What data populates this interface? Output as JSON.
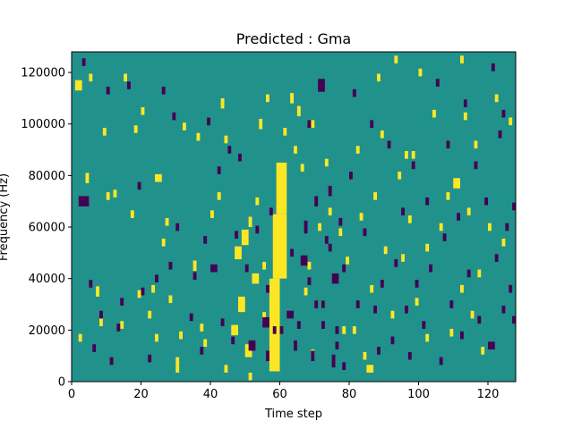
{
  "chart_data": {
    "type": "heatmap",
    "title": "Predicted : Gma",
    "xlabel": "Time step",
    "ylabel": "Frequency (Hz)",
    "xlim": [
      0,
      128
    ],
    "ylim": [
      0,
      128000
    ],
    "xticks": [
      0,
      20,
      40,
      60,
      80,
      100,
      120
    ],
    "yticks": [
      0,
      20000,
      40000,
      60000,
      80000,
      100000,
      120000
    ],
    "grid": false,
    "legend": "none",
    "n_time_steps": 128,
    "n_freq_bins": 128,
    "colormap": "viridis",
    "colors": {
      "background": "#21918c",
      "high": "#fde725",
      "low": "#440154"
    },
    "dense_band": {
      "level": "high",
      "rows": [
        {
          "t": [
            57,
            60
          ],
          "f": [
            4000,
            40000
          ]
        },
        {
          "t": [
            58,
            62
          ],
          "f": [
            40000,
            65000
          ]
        },
        {
          "t": [
            59,
            62
          ],
          "f": [
            65000,
            85000
          ]
        }
      ]
    },
    "blobs": {
      "high": [
        [
          1,
          115000,
          2,
          4000
        ],
        [
          2,
          17000,
          1,
          3000
        ],
        [
          3,
          70000,
          1,
          4000
        ],
        [
          4,
          79000,
          1,
          4000
        ],
        [
          5,
          118000,
          1,
          3000
        ],
        [
          7,
          35000,
          1,
          4000
        ],
        [
          8,
          23000,
          1,
          3000
        ],
        [
          9,
          97000,
          1,
          3000
        ],
        [
          10,
          72000,
          1,
          3000
        ],
        [
          12,
          73000,
          1,
          3000
        ],
        [
          14,
          22000,
          1,
          3000
        ],
        [
          15,
          118000,
          1,
          3000
        ],
        [
          17,
          65000,
          1,
          3000
        ],
        [
          18,
          98000,
          1,
          3000
        ],
        [
          19,
          34000,
          1,
          3000
        ],
        [
          20,
          105000,
          1,
          3000
        ],
        [
          22,
          26000,
          1,
          3000
        ],
        [
          23,
          36000,
          1,
          3000
        ],
        [
          24,
          79000,
          2,
          3000
        ],
        [
          24,
          17000,
          1,
          3000
        ],
        [
          26,
          54000,
          1,
          3000
        ],
        [
          27,
          62000,
          1,
          3000
        ],
        [
          28,
          32000,
          1,
          3000
        ],
        [
          30,
          8000,
          1,
          3000
        ],
        [
          31,
          18000,
          1,
          3000
        ],
        [
          32,
          99000,
          1,
          3000
        ],
        [
          35,
          45000,
          1,
          4000
        ],
        [
          36,
          95000,
          1,
          3000
        ],
        [
          37,
          21000,
          1,
          3000
        ],
        [
          38,
          15000,
          1,
          3000
        ],
        [
          40,
          65000,
          1,
          3000
        ],
        [
          43,
          108000,
          1,
          4000
        ],
        [
          44,
          5000,
          1,
          3000
        ],
        [
          46,
          20000,
          2,
          4000
        ],
        [
          47,
          50000,
          2,
          5000
        ],
        [
          48,
          30000,
          2,
          6000
        ],
        [
          49,
          56000,
          2,
          6000
        ],
        [
          50,
          12000,
          2,
          5000
        ],
        [
          51,
          62000,
          1,
          4000
        ],
        [
          52,
          40000,
          2,
          4000
        ],
        [
          53,
          70000,
          1,
          3000
        ],
        [
          54,
          100000,
          1,
          4000
        ],
        [
          55,
          25000,
          1,
          4000
        ],
        [
          56,
          110000,
          1,
          3000
        ],
        [
          63,
          110000,
          1,
          4000
        ],
        [
          64,
          90000,
          1,
          3000
        ],
        [
          65,
          105000,
          1,
          4000
        ],
        [
          66,
          83000,
          1,
          3000
        ],
        [
          68,
          45000,
          1,
          3000
        ],
        [
          69,
          100000,
          1,
          3000
        ],
        [
          71,
          60000,
          1,
          3000
        ],
        [
          72,
          30000,
          1,
          3000
        ],
        [
          73,
          85000,
          1,
          3000
        ],
        [
          74,
          66000,
          1,
          3000
        ],
        [
          75,
          40000,
          1,
          3000
        ],
        [
          77,
          58000,
          1,
          3000
        ],
        [
          78,
          20000,
          1,
          3000
        ],
        [
          79,
          47000,
          1,
          3000
        ],
        [
          81,
          20000,
          1,
          3000
        ],
        [
          82,
          90000,
          1,
          3000
        ],
        [
          83,
          64000,
          1,
          3000
        ],
        [
          84,
          10000,
          1,
          3000
        ],
        [
          85,
          5000,
          2,
          3000
        ],
        [
          86,
          36000,
          1,
          3000
        ],
        [
          87,
          72000,
          1,
          3000
        ],
        [
          89,
          96000,
          1,
          3000
        ],
        [
          90,
          51000,
          1,
          3000
        ],
        [
          92,
          26000,
          1,
          3000
        ],
        [
          94,
          80000,
          1,
          3000
        ],
        [
          95,
          48000,
          1,
          3000
        ],
        [
          96,
          88000,
          1,
          3000
        ],
        [
          97,
          63000,
          1,
          3000
        ],
        [
          98,
          88000,
          1,
          3000
        ],
        [
          99,
          31000,
          1,
          3000
        ],
        [
          102,
          52000,
          1,
          3000
        ],
        [
          104,
          104000,
          1,
          3000
        ],
        [
          106,
          60000,
          1,
          3000
        ],
        [
          108,
          72000,
          1,
          3000
        ],
        [
          109,
          19000,
          1,
          3000
        ],
        [
          110,
          77000,
          2,
          4000
        ],
        [
          112,
          36000,
          1,
          3000
        ],
        [
          113,
          103000,
          1,
          3000
        ],
        [
          114,
          66000,
          1,
          3000
        ],
        [
          115,
          26000,
          1,
          3000
        ],
        [
          116,
          92000,
          1,
          3000
        ],
        [
          117,
          42000,
          1,
          3000
        ],
        [
          118,
          12000,
          1,
          3000
        ],
        [
          120,
          60000,
          1,
          3000
        ],
        [
          122,
          110000,
          1,
          3000
        ],
        [
          124,
          54000,
          1,
          3000
        ],
        [
          126,
          101000,
          1,
          3000
        ],
        [
          88,
          118000,
          1,
          3000
        ],
        [
          93,
          125000,
          1,
          3000
        ],
        [
          112,
          125000,
          1,
          3000
        ],
        [
          67,
          35000,
          1,
          3000
        ],
        [
          30,
          5000,
          1,
          3000
        ],
        [
          42,
          72000,
          1,
          3000
        ],
        [
          44,
          94000,
          1,
          3000
        ],
        [
          69,
          11000,
          1,
          3000
        ],
        [
          102,
          17000,
          1,
          3000
        ],
        [
          61,
          97000,
          1,
          3000
        ],
        [
          55,
          45000,
          1,
          3000
        ],
        [
          51,
          2000,
          1,
          3000
        ],
        [
          100,
          120000,
          1,
          3000
        ]
      ],
      "low": [
        [
          2,
          70000,
          3,
          4000
        ],
        [
          3,
          124000,
          1,
          3000
        ],
        [
          5,
          38000,
          1,
          3000
        ],
        [
          6,
          13000,
          1,
          3000
        ],
        [
          8,
          26000,
          1,
          3000
        ],
        [
          10,
          113000,
          1,
          3000
        ],
        [
          11,
          8000,
          1,
          3000
        ],
        [
          13,
          21000,
          1,
          3000
        ],
        [
          14,
          31000,
          1,
          3000
        ],
        [
          16,
          115000,
          1,
          3000
        ],
        [
          19,
          76000,
          1,
          3000
        ],
        [
          20,
          35000,
          1,
          3000
        ],
        [
          22,
          9000,
          1,
          3000
        ],
        [
          24,
          40000,
          1,
          3000
        ],
        [
          26,
          113000,
          1,
          3000
        ],
        [
          28,
          45000,
          1,
          3000
        ],
        [
          29,
          103000,
          1,
          3000
        ],
        [
          30,
          60000,
          1,
          3000
        ],
        [
          34,
          25000,
          1,
          3000
        ],
        [
          35,
          41000,
          1,
          3000
        ],
        [
          37,
          12000,
          1,
          3000
        ],
        [
          38,
          55000,
          1,
          3000
        ],
        [
          39,
          101000,
          1,
          3000
        ],
        [
          40,
          44000,
          2,
          3000
        ],
        [
          42,
          82000,
          1,
          3000
        ],
        [
          43,
          23000,
          1,
          3000
        ],
        [
          45,
          90000,
          1,
          3000
        ],
        [
          46,
          16000,
          1,
          3000
        ],
        [
          47,
          57000,
          1,
          3000
        ],
        [
          48,
          87000,
          1,
          3000
        ],
        [
          50,
          44000,
          1,
          3000
        ],
        [
          51,
          14000,
          2,
          4000
        ],
        [
          53,
          59000,
          1,
          3000
        ],
        [
          55,
          23000,
          2,
          4000
        ],
        [
          56,
          10000,
          1,
          4000
        ],
        [
          56,
          36000,
          1,
          3000
        ],
        [
          57,
          66000,
          1,
          3000
        ],
        [
          64,
          14000,
          1,
          4000
        ],
        [
          65,
          22000,
          1,
          3000
        ],
        [
          66,
          47000,
          2,
          4000
        ],
        [
          67,
          60000,
          1,
          5000
        ],
        [
          68,
          39000,
          1,
          3000
        ],
        [
          68,
          100000,
          1,
          3000
        ],
        [
          69,
          10000,
          1,
          4000
        ],
        [
          70,
          70000,
          1,
          4000
        ],
        [
          71,
          115000,
          2,
          5000
        ],
        [
          72,
          30000,
          1,
          3000
        ],
        [
          73,
          55000,
          1,
          3000
        ],
        [
          74,
          74000,
          1,
          4000
        ],
        [
          75,
          8000,
          1,
          5000
        ],
        [
          75,
          40000,
          2,
          4000
        ],
        [
          76,
          20000,
          1,
          3000
        ],
        [
          77,
          62000,
          1,
          3000
        ],
        [
          78,
          44000,
          1,
          3000
        ],
        [
          80,
          80000,
          1,
          3000
        ],
        [
          81,
          112000,
          1,
          3000
        ],
        [
          82,
          30000,
          1,
          3000
        ],
        [
          84,
          58000,
          1,
          3000
        ],
        [
          86,
          100000,
          1,
          3000
        ],
        [
          87,
          28000,
          1,
          3000
        ],
        [
          88,
          12000,
          1,
          3000
        ],
        [
          89,
          38000,
          1,
          3000
        ],
        [
          91,
          92000,
          1,
          3000
        ],
        [
          92,
          16000,
          1,
          3000
        ],
        [
          93,
          46000,
          1,
          3000
        ],
        [
          95,
          66000,
          1,
          3000
        ],
        [
          96,
          28000,
          1,
          3000
        ],
        [
          97,
          10000,
          1,
          3000
        ],
        [
          98,
          84000,
          1,
          3000
        ],
        [
          99,
          38000,
          1,
          3000
        ],
        [
          101,
          22000,
          1,
          3000
        ],
        [
          102,
          70000,
          1,
          3000
        ],
        [
          103,
          44000,
          1,
          3000
        ],
        [
          105,
          116000,
          1,
          3000
        ],
        [
          106,
          8000,
          1,
          3000
        ],
        [
          107,
          56000,
          1,
          3000
        ],
        [
          108,
          92000,
          1,
          3000
        ],
        [
          109,
          30000,
          1,
          3000
        ],
        [
          111,
          64000,
          1,
          3000
        ],
        [
          112,
          18000,
          1,
          3000
        ],
        [
          113,
          108000,
          1,
          3000
        ],
        [
          114,
          42000,
          1,
          3000
        ],
        [
          116,
          84000,
          1,
          3000
        ],
        [
          117,
          24000,
          1,
          3000
        ],
        [
          119,
          70000,
          1,
          3000
        ],
        [
          120,
          14000,
          1,
          3000
        ],
        [
          122,
          48000,
          1,
          3000
        ],
        [
          123,
          96000,
          1,
          3000
        ],
        [
          124,
          28000,
          1,
          3000
        ],
        [
          125,
          60000,
          1,
          3000
        ],
        [
          126,
          36000,
          1,
          3000
        ],
        [
          127,
          68000,
          1,
          3000
        ],
        [
          127,
          24000,
          1,
          3000
        ],
        [
          124,
          104000,
          1,
          3000
        ],
        [
          121,
          122000,
          1,
          3000
        ],
        [
          70,
          30000,
          1,
          3000
        ],
        [
          72,
          22000,
          1,
          3000
        ],
        [
          74,
          52000,
          1,
          3000
        ],
        [
          76,
          14000,
          1,
          3000
        ],
        [
          78,
          6000,
          1,
          3000
        ],
        [
          62,
          26000,
          2,
          3000
        ],
        [
          63,
          50000,
          1,
          3000
        ],
        [
          60,
          20000,
          1,
          3000
        ],
        [
          58,
          20000,
          1,
          3000
        ],
        [
          121,
          14000,
          1,
          3000
        ]
      ]
    }
  }
}
